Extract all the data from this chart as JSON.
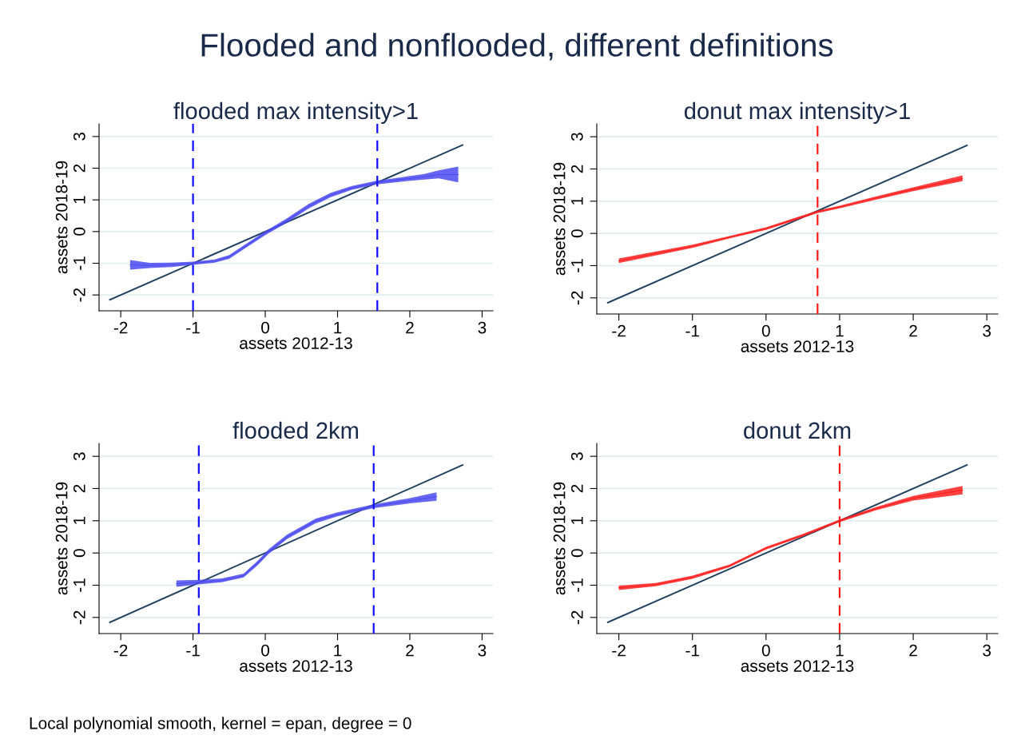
{
  "chart_data": [
    {
      "type": "line",
      "title": "flooded max intensity>1",
      "xlabel": "assets 2012-13",
      "ylabel": "assets 2018-19",
      "annotations": [
        "Flooded and nonflooded, different definitions",
        "Local polynomial smooth, kernel = epan, degree = 0"
      ],
      "xlim": [
        -2.3,
        3.15
      ],
      "ylim": [
        -2.5,
        3.4
      ],
      "xticks": [
        -2,
        -1,
        0,
        1,
        2,
        3
      ],
      "yticks": [
        -2,
        -1,
        0,
        1,
        2,
        3
      ],
      "grid": "y",
      "legend": false,
      "series": [
        {
          "color": "#4b4bf0",
          "x": [
            -1.87,
            -1.6,
            -1.3,
            -1.0,
            -0.7,
            -0.5,
            -0.3,
            0.0,
            0.3,
            0.6,
            0.9,
            1.2,
            1.55,
            1.9,
            2.2,
            2.4,
            2.67
          ],
          "values": [
            -1.05,
            -1.07,
            -1.05,
            -1.0,
            -0.93,
            -0.8,
            -0.5,
            -0.05,
            0.35,
            0.8,
            1.15,
            1.38,
            1.55,
            1.65,
            1.73,
            1.8,
            1.8
          ],
          "lower": [
            -1.2,
            -1.15,
            -1.12,
            -1.05,
            -0.98,
            -0.86,
            -0.56,
            -0.11,
            0.28,
            0.73,
            1.08,
            1.32,
            1.49,
            1.58,
            1.64,
            1.68,
            1.55
          ],
          "upper": [
            -0.9,
            -0.99,
            -0.98,
            -0.95,
            -0.88,
            -0.74,
            -0.44,
            0.01,
            0.42,
            0.87,
            1.22,
            1.44,
            1.61,
            1.72,
            1.82,
            1.93,
            2.05
          ]
        },
        {
          "color": "#1f3f5f",
          "x": [
            -2.15,
            2.73
          ],
          "values": [
            -2.15,
            2.73
          ]
        }
      ],
      "ref_lines": [
        {
          "axis": "x",
          "value": -1.0,
          "color": "#1010ff",
          "line_style": "dashed"
        },
        {
          "axis": "x",
          "value": 1.55,
          "color": "#1010ff",
          "line_style": "dashed"
        }
      ]
    },
    {
      "type": "line",
      "title": "donut max intensity>1",
      "xlabel": "assets 2012-13",
      "ylabel": "assets 2018-19",
      "xlim": [
        -2.3,
        3.15
      ],
      "ylim": [
        -2.5,
        3.4
      ],
      "xticks": [
        -2,
        -1,
        0,
        1,
        2,
        3
      ],
      "yticks": [
        -2,
        -1,
        0,
        1,
        2,
        3
      ],
      "grid": "y",
      "legend": false,
      "series": [
        {
          "color": "#ff2020",
          "x": [
            -2.0,
            -1.0,
            -0.5,
            0.0,
            0.7,
            1.0,
            1.5,
            2.0,
            2.67
          ],
          "values": [
            -0.85,
            -0.4,
            -0.12,
            0.15,
            0.67,
            0.82,
            1.1,
            1.37,
            1.7
          ],
          "lower": [
            -0.92,
            -0.45,
            -0.16,
            0.11,
            0.63,
            0.78,
            1.05,
            1.31,
            1.62
          ],
          "upper": [
            -0.78,
            -0.35,
            -0.08,
            0.19,
            0.71,
            0.86,
            1.15,
            1.43,
            1.8
          ]
        },
        {
          "color": "#1f3f5f",
          "x": [
            -2.15,
            2.73
          ],
          "values": [
            -2.15,
            2.73
          ]
        }
      ],
      "ref_lines": [
        {
          "axis": "x",
          "value": 0.7,
          "color": "#ff1a1a",
          "line_style": "dashed"
        }
      ]
    },
    {
      "type": "line",
      "title": "flooded 2km",
      "xlabel": "assets 2012-13",
      "ylabel": "assets 2018-19",
      "xlim": [
        -2.3,
        3.15
      ],
      "ylim": [
        -2.5,
        3.4
      ],
      "xticks": [
        -2,
        -1,
        0,
        1,
        2,
        3
      ],
      "yticks": [
        -2,
        -1,
        0,
        1,
        2,
        3
      ],
      "grid": "y",
      "legend": false,
      "series": [
        {
          "color": "#4b4bf0",
          "x": [
            -1.23,
            -0.9,
            -0.6,
            -0.3,
            -0.1,
            0.05,
            0.3,
            0.7,
            1.0,
            1.5,
            2.0,
            2.37
          ],
          "values": [
            -0.95,
            -0.9,
            -0.85,
            -0.7,
            -0.3,
            0.05,
            0.5,
            1.0,
            1.2,
            1.45,
            1.62,
            1.75
          ],
          "lower": [
            -1.05,
            -0.97,
            -0.91,
            -0.76,
            -0.37,
            -0.02,
            0.43,
            0.93,
            1.14,
            1.39,
            1.54,
            1.62
          ],
          "upper": [
            -0.85,
            -0.83,
            -0.79,
            -0.64,
            -0.23,
            0.12,
            0.57,
            1.07,
            1.26,
            1.51,
            1.7,
            1.88
          ]
        },
        {
          "color": "#1f3f5f",
          "x": [
            -2.15,
            2.73
          ],
          "values": [
            -2.15,
            2.73
          ]
        }
      ],
      "ref_lines": [
        {
          "axis": "x",
          "value": -0.92,
          "color": "#1010ff",
          "line_style": "dashed"
        },
        {
          "axis": "x",
          "value": 1.5,
          "color": "#1010ff",
          "line_style": "dashed"
        }
      ]
    },
    {
      "type": "line",
      "title": "donut 2km",
      "xlabel": "assets 2012-13",
      "ylabel": "assets 2018-19",
      "xlim": [
        -2.3,
        3.15
      ],
      "ylim": [
        -2.5,
        3.4
      ],
      "xticks": [
        -2,
        -1,
        0,
        1,
        2,
        3
      ],
      "yticks": [
        -2,
        -1,
        0,
        1,
        2,
        3
      ],
      "grid": "y",
      "legend": false,
      "series": [
        {
          "color": "#ff2020",
          "x": [
            -2.0,
            -1.5,
            -1.0,
            -0.5,
            0.0,
            0.5,
            1.0,
            1.5,
            2.0,
            2.67
          ],
          "values": [
            -1.08,
            -0.98,
            -0.75,
            -0.4,
            0.15,
            0.55,
            1.0,
            1.38,
            1.7,
            1.95
          ],
          "lower": [
            -1.15,
            -1.03,
            -0.8,
            -0.44,
            0.11,
            0.51,
            0.96,
            1.33,
            1.63,
            1.82
          ],
          "upper": [
            -1.01,
            -0.93,
            -0.7,
            -0.36,
            0.19,
            0.59,
            1.04,
            1.43,
            1.77,
            2.08
          ]
        },
        {
          "color": "#1f3f5f",
          "x": [
            -2.15,
            2.73
          ],
          "values": [
            -2.15,
            2.73
          ]
        }
      ],
      "ref_lines": [
        {
          "axis": "x",
          "value": 1.0,
          "color": "#ff1a1a",
          "line_style": "dashed"
        }
      ]
    }
  ]
}
